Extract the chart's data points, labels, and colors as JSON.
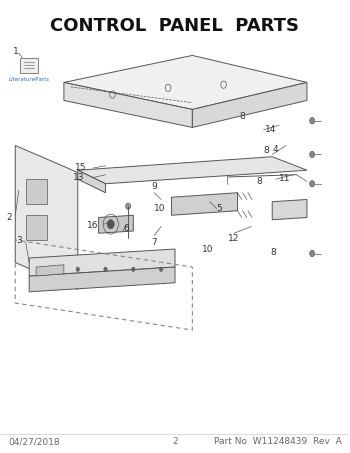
{
  "title": "CONTROL  PANEL  PARTS",
  "title_fontsize": 13,
  "title_fontweight": "bold",
  "bg_color": "#ffffff",
  "line_color": "#555555",
  "label_color": "#555555",
  "footer_left": "04/27/2018",
  "footer_center": "2",
  "footer_right": "Part No  W11248439  Rev  A",
  "footer_fontsize": 6.5
}
